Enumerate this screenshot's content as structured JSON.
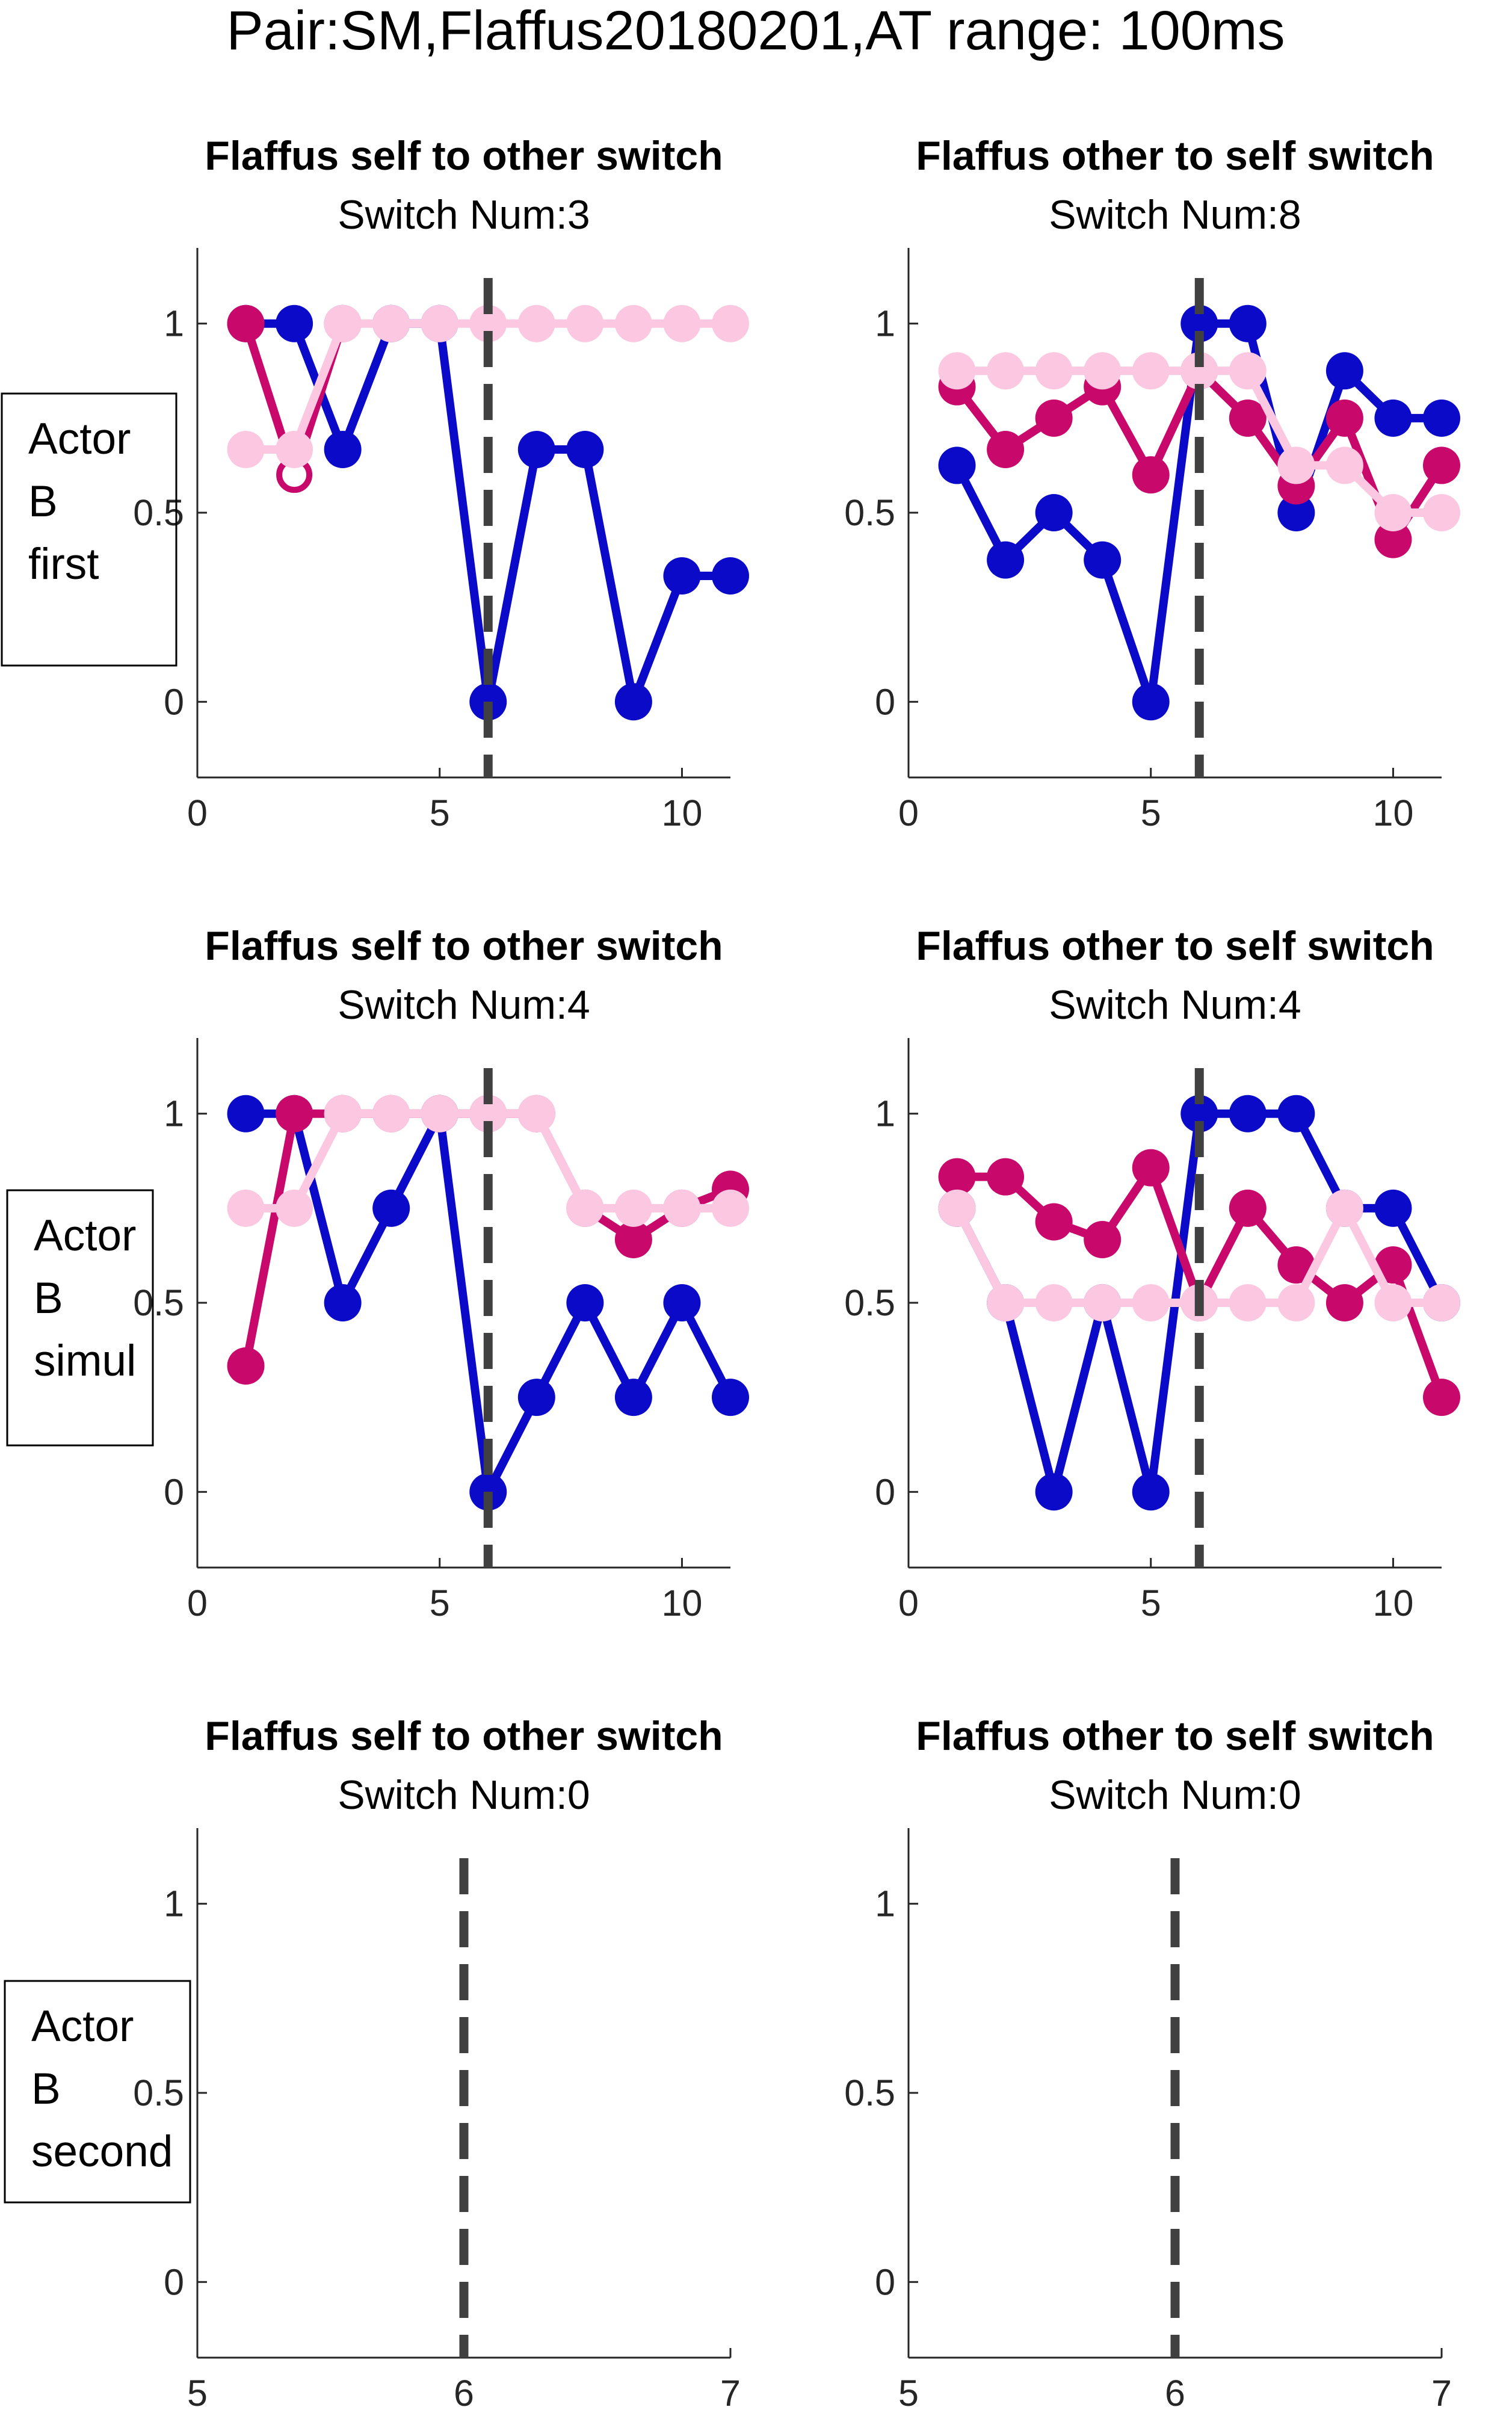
{
  "figure_title": "Pair:SM,Flaffus20180201,AT range: 100ms",
  "colors": {
    "blue": "#0a0ac8",
    "magenta": "#c8096b",
    "pink": "#fcc8e1",
    "dashed_line": "#404040",
    "axis": "#262626"
  },
  "row_labels": [
    {
      "lines": [
        "Actor",
        "B",
        "first"
      ]
    },
    {
      "lines": [
        "Actor",
        "B",
        "simul"
      ]
    },
    {
      "lines": [
        "Actor",
        "B",
        "second"
      ]
    }
  ],
  "chart_data": [
    {
      "type": "line",
      "title": "Flaffus self to other switch",
      "subtitle": "Switch Num:3",
      "xlim": [
        0,
        11
      ],
      "ylim": [
        -0.2,
        1.2
      ],
      "xticks": [
        0,
        5,
        10
      ],
      "xtick_labels": [
        "0",
        "5",
        "10"
      ],
      "yticks": [
        0,
        0.5,
        1
      ],
      "ytick_labels": [
        "0",
        "0.5",
        "1"
      ],
      "switch_x": 6,
      "series": [
        {
          "color_key": "blue",
          "x": [
            1,
            2,
            3,
            4,
            5,
            6,
            7,
            8,
            9,
            10,
            11
          ],
          "y": [
            1,
            1,
            0.667,
            1,
            1,
            0,
            0.667,
            0.667,
            0,
            0.333,
            0.333
          ]
        },
        {
          "color_key": "magenta",
          "x": [
            1,
            2,
            3
          ],
          "y": [
            1,
            0.6,
            1
          ],
          "hollow_index": 1
        },
        {
          "color_key": "pink",
          "x": [
            1,
            2,
            3,
            4,
            5,
            6,
            7,
            8,
            9,
            10,
            11
          ],
          "y": [
            0.667,
            0.667,
            1,
            1,
            1,
            1,
            1,
            1,
            1,
            1,
            1
          ]
        }
      ]
    },
    {
      "type": "line",
      "title": "Flaffus other to self switch",
      "subtitle": "Switch Num:8",
      "xlim": [
        0,
        11
      ],
      "ylim": [
        -0.2,
        1.2
      ],
      "xticks": [
        0,
        5,
        10
      ],
      "xtick_labels": [
        "0",
        "5",
        "10"
      ],
      "yticks": [
        0,
        0.5,
        1
      ],
      "ytick_labels": [
        "0",
        "0.5",
        "1"
      ],
      "switch_x": 6,
      "series": [
        {
          "color_key": "blue",
          "x": [
            1,
            2,
            3,
            4,
            5,
            6,
            7,
            8,
            9,
            10,
            11
          ],
          "y": [
            0.625,
            0.375,
            0.5,
            0.375,
            0,
            1,
            1,
            0.5,
            0.875,
            0.75,
            0.75
          ]
        },
        {
          "color_key": "magenta",
          "x": [
            1,
            2,
            3,
            4,
            5,
            6,
            7,
            8,
            9,
            10,
            11
          ],
          "y": [
            0.833,
            0.667,
            0.75,
            0.833,
            0.6,
            0.875,
            0.75,
            0.571,
            0.75,
            0.429,
            0.625
          ]
        },
        {
          "color_key": "pink",
          "x": [
            1,
            2,
            3,
            4,
            5,
            6,
            7,
            8,
            9,
            10,
            11
          ],
          "y": [
            0.875,
            0.875,
            0.875,
            0.875,
            0.875,
            0.875,
            0.875,
            0.625,
            0.625,
            0.5,
            0.5
          ]
        }
      ]
    },
    {
      "type": "line",
      "title": "Flaffus self to other switch",
      "subtitle": "Switch Num:4",
      "xlim": [
        0,
        11
      ],
      "ylim": [
        -0.2,
        1.2
      ],
      "xticks": [
        0,
        5,
        10
      ],
      "xtick_labels": [
        "0",
        "5",
        "10"
      ],
      "yticks": [
        0,
        0.5,
        1
      ],
      "ytick_labels": [
        "0",
        "0.5",
        "1"
      ],
      "switch_x": 6,
      "series": [
        {
          "color_key": "blue",
          "x": [
            1,
            2,
            3,
            4,
            5,
            6,
            7,
            8,
            9,
            10,
            11
          ],
          "y": [
            1,
            1,
            0.5,
            0.75,
            1,
            0,
            0.25,
            0.5,
            0.25,
            0.5,
            0.25
          ]
        },
        {
          "color_key": "magenta",
          "x": [
            1,
            2,
            3,
            4,
            5,
            6,
            7,
            8,
            9,
            10,
            11
          ],
          "y": [
            0.333,
            1,
            1,
            1,
            1,
            1,
            1,
            0.75,
            0.667,
            0.75,
            0.8
          ]
        },
        {
          "color_key": "pink",
          "x": [
            1,
            2,
            3,
            4,
            5,
            6,
            7,
            8,
            9,
            10,
            11
          ],
          "y": [
            0.75,
            0.75,
            1,
            1,
            1,
            1,
            1,
            0.75,
            0.75,
            0.75,
            0.75
          ]
        }
      ]
    },
    {
      "type": "line",
      "title": "Flaffus other to self switch",
      "subtitle": "Switch Num:4",
      "xlim": [
        0,
        11
      ],
      "ylim": [
        -0.2,
        1.2
      ],
      "xticks": [
        0,
        5,
        10
      ],
      "xtick_labels": [
        "0",
        "5",
        "10"
      ],
      "yticks": [
        0,
        0.5,
        1
      ],
      "ytick_labels": [
        "0",
        "0.5",
        "1"
      ],
      "switch_x": 6,
      "series": [
        {
          "color_key": "blue",
          "x": [
            1,
            2,
            3,
            4,
            5,
            6,
            7,
            8,
            9,
            10,
            11
          ],
          "y": [
            0.75,
            0.5,
            0,
            0.5,
            0,
            1,
            1,
            1,
            0.75,
            0.75,
            0.5
          ]
        },
        {
          "color_key": "magenta",
          "x": [
            1,
            2,
            3,
            4,
            5,
            6,
            7,
            8,
            9,
            10,
            11
          ],
          "y": [
            0.833,
            0.833,
            0.714,
            0.667,
            0.857,
            0.5,
            0.75,
            0.6,
            0.5,
            0.6,
            0.25
          ]
        },
        {
          "color_key": "pink",
          "x": [
            1,
            2,
            3,
            4,
            5,
            6,
            7,
            8,
            9,
            10,
            11
          ],
          "y": [
            0.75,
            0.5,
            0.5,
            0.5,
            0.5,
            0.5,
            0.5,
            0.5,
            0.75,
            0.5,
            0.5
          ]
        }
      ]
    },
    {
      "type": "line",
      "title": "Flaffus self to other switch",
      "subtitle": "Switch Num:0",
      "xlim": [
        5,
        7
      ],
      "ylim": [
        -0.2,
        1.2
      ],
      "xticks": [
        5,
        6,
        7
      ],
      "xtick_labels": [
        "5",
        "6",
        "7"
      ],
      "yticks": [
        0,
        0.5,
        1
      ],
      "ytick_labels": [
        "0",
        "0.5",
        "1"
      ],
      "switch_x": 6,
      "series": []
    },
    {
      "type": "line",
      "title": "Flaffus other to self switch",
      "subtitle": "Switch Num:0",
      "xlim": [
        5,
        7
      ],
      "ylim": [
        -0.2,
        1.2
      ],
      "xticks": [
        5,
        6,
        7
      ],
      "xtick_labels": [
        "5",
        "6",
        "7"
      ],
      "yticks": [
        0,
        0.5,
        1
      ],
      "ytick_labels": [
        "0",
        "0.5",
        "1"
      ],
      "switch_x": 6,
      "series": []
    }
  ]
}
